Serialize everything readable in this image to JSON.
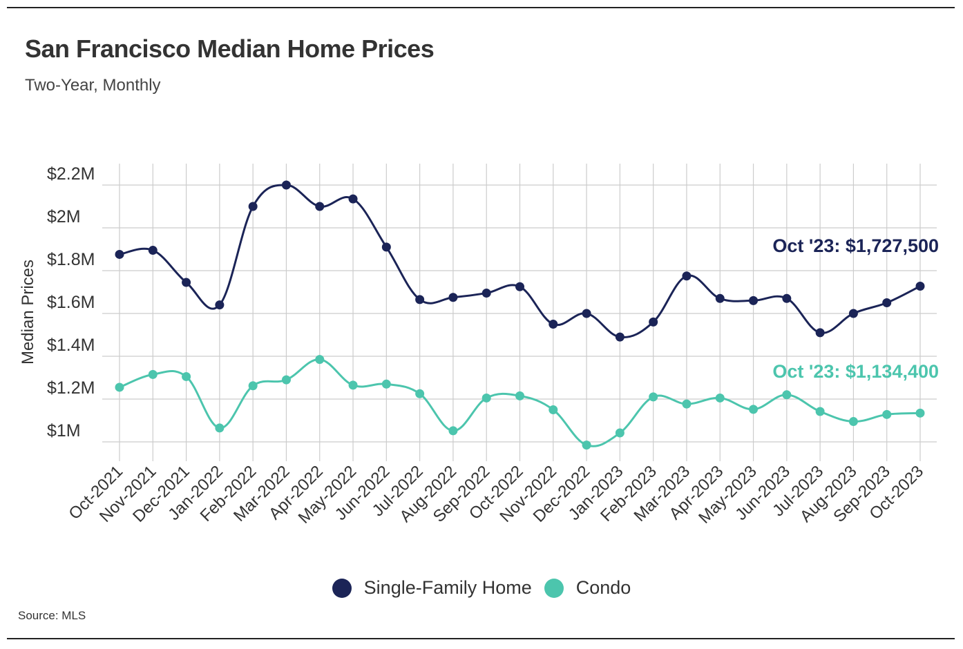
{
  "header": {
    "title": "San Francisco Median Home Prices",
    "subtitle": "Two-Year, Monthly"
  },
  "footer": {
    "source": "Source:  MLS"
  },
  "colors": {
    "single_family": "#1b2457",
    "condo": "#4cc5ad",
    "grid": "#cccccc"
  },
  "chart_data": {
    "type": "line",
    "title": "San Francisco Median Home Prices",
    "subtitle": "Two-Year, Monthly",
    "xlabel": "",
    "ylabel": "Median Prices",
    "ylim": [
      950000,
      2200000
    ],
    "yticks": [
      1000000,
      1200000,
      1400000,
      1600000,
      1800000,
      2000000,
      2200000
    ],
    "ytick_labels": [
      "$1M",
      "$1.2M",
      "$1.4M",
      "$1.6M",
      "$1.8M",
      "$2M",
      "$2.2M"
    ],
    "categories": [
      "Oct-2021",
      "Nov-2021",
      "Dec-2021",
      "Jan-2022",
      "Feb-2022",
      "Mar-2022",
      "Apr-2022",
      "May-2022",
      "Jun-2022",
      "Jul-2022",
      "Aug-2022",
      "Sep-2022",
      "Oct-2022",
      "Nov-2022",
      "Dec-2022",
      "Jan-2023",
      "Feb-2023",
      "Mar-2023",
      "Apr-2023",
      "May-2023",
      "Jun-2023",
      "Jul-2023",
      "Aug-2023",
      "Sep-2023",
      "Oct-2023"
    ],
    "series": [
      {
        "name": "Single-Family Home",
        "color": "#1b2457",
        "values": [
          1876000,
          1895000,
          1745000,
          1640000,
          2100000,
          2200000,
          2100000,
          2135000,
          1910000,
          1665000,
          1675000,
          1695000,
          1725000,
          1550000,
          1600000,
          1490000,
          1560000,
          1775000,
          1670000,
          1660000,
          1670000,
          1510000,
          1600000,
          1650000,
          1727500
        ],
        "annotation": "Oct '23: $1,727,500"
      },
      {
        "name": "Condo",
        "color": "#4cc5ad",
        "values": [
          1255000,
          1315000,
          1305000,
          1065000,
          1262000,
          1290000,
          1385000,
          1265000,
          1270000,
          1225000,
          1052000,
          1205000,
          1215000,
          1150000,
          985000,
          1042000,
          1210000,
          1177000,
          1205000,
          1152000,
          1220000,
          1142000,
          1095000,
          1128000,
          1134400
        ],
        "annotation": "Oct '23: $1,134,400"
      }
    ],
    "legend": "bottom-center"
  }
}
